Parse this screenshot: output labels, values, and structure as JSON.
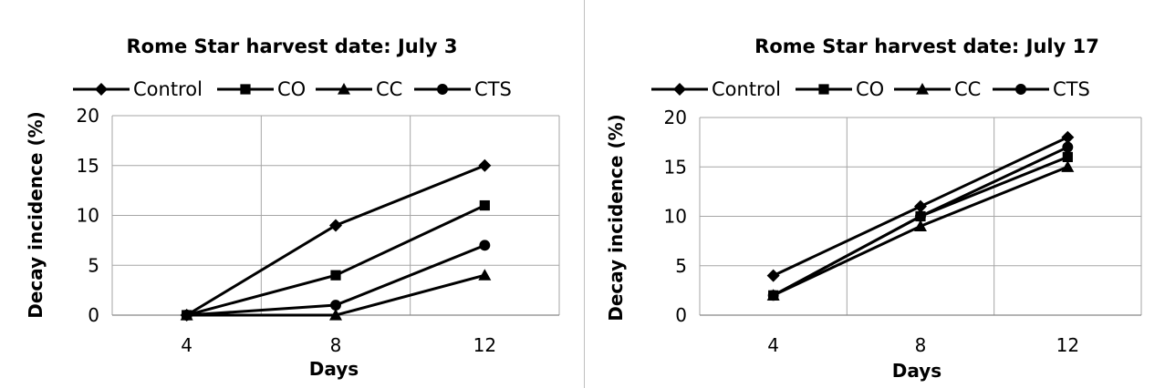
{
  "chart_data": [
    {
      "type": "line",
      "title": "Rome Star harvest date: July  3",
      "xlabel": "Days",
      "ylabel": "Decay incidence (%)",
      "categories": [
        "4",
        "8",
        "12"
      ],
      "yticks": [
        "0",
        "5",
        "10",
        "15",
        "20"
      ],
      "ylim": [
        0,
        20
      ],
      "grid": true,
      "legend": "top",
      "series": [
        {
          "name": "Control",
          "marker": "diamond",
          "values": [
            0,
            9,
            15
          ]
        },
        {
          "name": "CO",
          "marker": "square",
          "values": [
            0,
            4,
            11
          ]
        },
        {
          "name": "CC",
          "marker": "triangle",
          "values": [
            0,
            0,
            4
          ]
        },
        {
          "name": "CTS",
          "marker": "circle",
          "values": [
            0,
            1,
            7
          ]
        }
      ]
    },
    {
      "type": "line",
      "title": "Rome Star harvest date: July 17",
      "xlabel": "Days",
      "ylabel": "Decay incidence (%)",
      "categories": [
        "4",
        "8",
        "12"
      ],
      "yticks": [
        "0",
        "5",
        "10",
        "15",
        "20"
      ],
      "ylim": [
        0,
        20
      ],
      "grid": true,
      "legend": "top",
      "series": [
        {
          "name": "Control",
          "marker": "diamond",
          "values": [
            4,
            11,
            18
          ]
        },
        {
          "name": "CO",
          "marker": "square",
          "values": [
            2,
            10,
            16
          ]
        },
        {
          "name": "CC",
          "marker": "triangle",
          "values": [
            2,
            9,
            15
          ]
        },
        {
          "name": "CTS",
          "marker": "circle",
          "values": [
            2,
            10,
            17
          ]
        }
      ]
    }
  ]
}
